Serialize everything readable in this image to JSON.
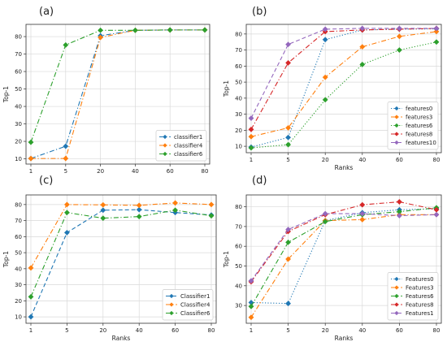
{
  "colors": {
    "blue": "#1f77b4",
    "orange": "#ff7f0e",
    "green": "#2ca02c",
    "red": "#d62728",
    "purple": "#9467bd",
    "grid": "#d9d9d9",
    "axis": "#333333"
  },
  "chart_data": [
    {
      "id": "a",
      "type": "line",
      "panel_label": "(a)",
      "xlabel": "",
      "ylabel": "Top-1",
      "categories": [
        "1",
        "5",
        "20",
        "40",
        "60",
        "80"
      ],
      "yticks": [
        10,
        20,
        30,
        40,
        50,
        60,
        70,
        80
      ],
      "ylim": [
        7,
        87
      ],
      "grid": true,
      "legend_position": "lower-right",
      "series": [
        {
          "name": "classifier1",
          "color": "#1f77b4",
          "dash": "dashdot",
          "values": [
            10.2,
            17.2,
            80.5,
            83.6,
            83.8,
            83.8
          ]
        },
        {
          "name": "classifier4",
          "color": "#ff7f0e",
          "dash": "dashdot",
          "values": [
            10.2,
            10.2,
            79.5,
            83.6,
            83.8,
            83.8
          ]
        },
        {
          "name": "classifier6",
          "color": "#2ca02c",
          "dash": "dashdot",
          "values": [
            19.5,
            75.2,
            83.6,
            83.6,
            83.8,
            83.8
          ]
        }
      ]
    },
    {
      "id": "b",
      "type": "line",
      "panel_label": "(b)",
      "xlabel": "Ranks",
      "ylabel": "Top-1",
      "categories": [
        "1",
        "5",
        "20",
        "40",
        "60",
        "80"
      ],
      "yticks": [
        10,
        20,
        30,
        40,
        50,
        60,
        70,
        80
      ],
      "ylim": [
        6,
        86
      ],
      "grid": true,
      "legend_position": "lower-right",
      "series": [
        {
          "name": "features0",
          "color": "#1f77b4",
          "dash": "dotted",
          "values": [
            9.5,
            15.5,
            76.5,
            82.5,
            83.0,
            83.2
          ]
        },
        {
          "name": "features3",
          "color": "#ff7f0e",
          "dash": "dashdot",
          "values": [
            16.0,
            21.5,
            53.0,
            72.0,
            78.5,
            81.5
          ]
        },
        {
          "name": "features6",
          "color": "#2ca02c",
          "dash": "dotted",
          "values": [
            9.0,
            11.0,
            39.0,
            61.0,
            70.0,
            75.0
          ]
        },
        {
          "name": "features8",
          "color": "#d62728",
          "dash": "dashdot",
          "values": [
            20.5,
            62.0,
            81.5,
            82.5,
            83.0,
            83.5
          ]
        },
        {
          "name": "features10",
          "color": "#9467bd",
          "dash": "dashed",
          "values": [
            27.5,
            73.5,
            83.0,
            83.5,
            83.5,
            83.5
          ]
        }
      ]
    },
    {
      "id": "c",
      "type": "line",
      "panel_label": "(c)",
      "xlabel": "Ranks",
      "ylabel": "Top-1",
      "categories": [
        "1",
        "5",
        "20",
        "40",
        "60",
        "80"
      ],
      "yticks": [
        10,
        20,
        30,
        40,
        50,
        60,
        70,
        80
      ],
      "ylim": [
        6,
        86
      ],
      "grid": true,
      "legend_position": "lower-right",
      "series": [
        {
          "name": "Classifier1",
          "color": "#1f77b4",
          "dash": "dashed",
          "values": [
            10.0,
            62.5,
            76.5,
            76.8,
            75.0,
            73.5
          ]
        },
        {
          "name": "Classifier4",
          "color": "#ff7f0e",
          "dash": "dashdot",
          "values": [
            40.5,
            80.0,
            79.8,
            79.5,
            81.0,
            80.0
          ]
        },
        {
          "name": "Classifier6",
          "color": "#2ca02c",
          "dash": "dashdot",
          "values": [
            22.5,
            75.0,
            71.5,
            72.5,
            76.5,
            73.0
          ]
        }
      ]
    },
    {
      "id": "d",
      "type": "line",
      "panel_label": "(d)",
      "xlabel": "Ranks",
      "ylabel": "Top-1",
      "categories": [
        "1",
        "5",
        "20",
        "40",
        "60",
        "80"
      ],
      "yticks": [
        30,
        40,
        50,
        60,
        70,
        80
      ],
      "ylim": [
        21,
        86
      ],
      "grid": true,
      "legend_position": "lower-right",
      "series": [
        {
          "name": "Features0",
          "color": "#1f77b4",
          "dash": "dotted",
          "values": [
            31.5,
            31.0,
            73.0,
            77.0,
            78.5,
            79.0
          ]
        },
        {
          "name": "Features3",
          "color": "#ff7f0e",
          "dash": "dashdot",
          "values": [
            24.0,
            53.5,
            73.0,
            73.5,
            76.0,
            76.0
          ]
        },
        {
          "name": "Features6",
          "color": "#2ca02c",
          "dash": "dashdot",
          "values": [
            29.5,
            62.0,
            72.5,
            76.0,
            77.5,
            79.5
          ]
        },
        {
          "name": "Features8",
          "color": "#d62728",
          "dash": "dashdot",
          "values": [
            42.0,
            67.5,
            76.0,
            81.0,
            82.5,
            78.5
          ]
        },
        {
          "name": "Features1",
          "color": "#9467bd",
          "dash": "dashed",
          "values": [
            42.5,
            68.5,
            76.5,
            76.5,
            75.5,
            76.0
          ]
        }
      ]
    }
  ]
}
